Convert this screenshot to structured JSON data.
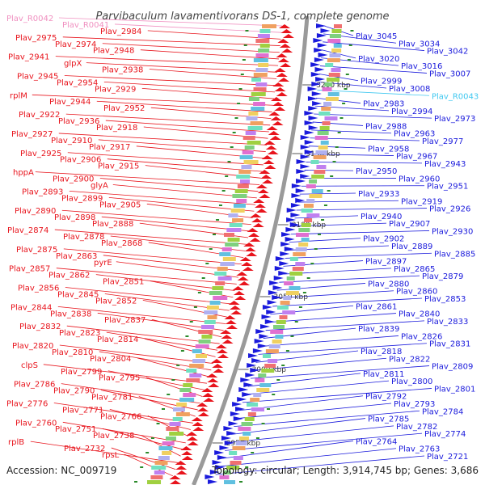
{
  "title": "Parvibaculum lavamentivorans DS-1, complete genome",
  "accession": "Accession: NC_009719",
  "topology": "Topology: circular; Length: 3,914,745 bp; Genes: 3,686",
  "colors": {
    "left_gene": "#e8141c",
    "right_gene": "#1a1adc",
    "rrna_left": "#f090c0",
    "rrna_right": "#40c8f0",
    "backbone": "#9a9a9a",
    "tick": "#2a8a2a"
  },
  "kbp_marks": [
    "3200 kbp",
    "3150 kbp",
    "3100 kbp",
    "3050 kbp",
    "3000 kbp",
    "2950 kbp"
  ],
  "left_labels": [
    {
      "t": "Plav_R0042",
      "c": "pink"
    },
    {
      "t": "Plav_R0041",
      "c": "pink"
    },
    {
      "t": "Plav_2984"
    },
    {
      "t": "Plav_2975"
    },
    {
      "t": "Plav_2974"
    },
    {
      "t": "Plav_2948"
    },
    {
      "t": "Plav_2941"
    },
    {
      "t": "glpX"
    },
    {
      "t": "Plav_2938"
    },
    {
      "t": "Plav_2945"
    },
    {
      "t": "Plav_2954"
    },
    {
      "t": "Plav_2929"
    },
    {
      "t": "rplM"
    },
    {
      "t": "Plav_2944"
    },
    {
      "t": "Plav_2952"
    },
    {
      "t": "Plav_2922"
    },
    {
      "t": "Plav_2936"
    },
    {
      "t": "Plav_2918"
    },
    {
      "t": "Plav_2927"
    },
    {
      "t": "Plav_2910"
    },
    {
      "t": "Plav_2917"
    },
    {
      "t": "Plav_2925"
    },
    {
      "t": "Plav_2906"
    },
    {
      "t": "Plav_2915"
    },
    {
      "t": "hppA"
    },
    {
      "t": "Plav_2900"
    },
    {
      "t": "glyA"
    },
    {
      "t": "Plav_2893"
    },
    {
      "t": "Plav_2899"
    },
    {
      "t": "Plav_2905"
    },
    {
      "t": "Plav_2890"
    },
    {
      "t": "Plav_2898"
    },
    {
      "t": "Plav_2888"
    },
    {
      "t": "Plav_2874"
    },
    {
      "t": "Plav_2878"
    },
    {
      "t": "Plav_2868"
    },
    {
      "t": "Plav_2875"
    },
    {
      "t": "Plav_2863"
    },
    {
      "t": "pyrE"
    },
    {
      "t": "Plav_2857"
    },
    {
      "t": "Plav_2862"
    },
    {
      "t": "Plav_2851"
    },
    {
      "t": "Plav_2856"
    },
    {
      "t": "Plav_2845"
    },
    {
      "t": "Plav_2852"
    },
    {
      "t": "Plav_2844"
    },
    {
      "t": "Plav_2838"
    },
    {
      "t": "Plav_2837"
    },
    {
      "t": "Plav_2832"
    },
    {
      "t": "Plav_2823"
    },
    {
      "t": "Plav_2814"
    },
    {
      "t": "Plav_2820"
    },
    {
      "t": "Plav_2810"
    },
    {
      "t": "Plav_2804"
    },
    {
      "t": "clpS"
    },
    {
      "t": "Plav_2799"
    },
    {
      "t": "Plav_2795"
    },
    {
      "t": "Plav_2786"
    },
    {
      "t": "Plav_2790"
    },
    {
      "t": "Plav_2781"
    },
    {
      "t": "Plav_2776"
    },
    {
      "t": "Plav_2771"
    },
    {
      "t": "Plav_2766"
    },
    {
      "t": "Plav_2760"
    },
    {
      "t": "Plav_2751"
    },
    {
      "t": "Plav_2738"
    },
    {
      "t": "rplB"
    },
    {
      "t": "Plav_2732"
    },
    {
      "t": "rpsL"
    }
  ],
  "right_labels": [
    {
      "t": "Plav_3045"
    },
    {
      "t": "Plav_3034"
    },
    {
      "t": "Plav_3042"
    },
    {
      "t": "Plav_3020"
    },
    {
      "t": "Plav_3016"
    },
    {
      "t": "Plav_3007"
    },
    {
      "t": "Plav_2999"
    },
    {
      "t": "Plav_3008"
    },
    {
      "t": "Plav_R0043",
      "c": "cyan"
    },
    {
      "t": "Plav_2983"
    },
    {
      "t": "Plav_2994"
    },
    {
      "t": "Plav_2973"
    },
    {
      "t": "Plav_2988"
    },
    {
      "t": "Plav_2963"
    },
    {
      "t": "Plav_2977"
    },
    {
      "t": "Plav_2958"
    },
    {
      "t": "Plav_2967"
    },
    {
      "t": "Plav_2943"
    },
    {
      "t": "Plav_2950"
    },
    {
      "t": "Plav_2960"
    },
    {
      "t": "Plav_2951"
    },
    {
      "t": "Plav_2933"
    },
    {
      "t": "Plav_2919"
    },
    {
      "t": "Plav_2926"
    },
    {
      "t": "Plav_2940"
    },
    {
      "t": "Plav_2907"
    },
    {
      "t": "Plav_2930"
    },
    {
      "t": "Plav_2902"
    },
    {
      "t": "Plav_2889"
    },
    {
      "t": "Plav_2885"
    },
    {
      "t": "Plav_2897"
    },
    {
      "t": "Plav_2865"
    },
    {
      "t": "Plav_2879"
    },
    {
      "t": "Plav_2880"
    },
    {
      "t": "Plav_2860"
    },
    {
      "t": "Plav_2853"
    },
    {
      "t": "Plav_2861"
    },
    {
      "t": "Plav_2840"
    },
    {
      "t": "Plav_2833"
    },
    {
      "t": "Plav_2839"
    },
    {
      "t": "Plav_2826"
    },
    {
      "t": "Plav_2831"
    },
    {
      "t": "Plav_2818"
    },
    {
      "t": "Plav_2822"
    },
    {
      "t": "Plav_2809"
    },
    {
      "t": "Plav_2811"
    },
    {
      "t": "Plav_2800"
    },
    {
      "t": "Plav_2801"
    },
    {
      "t": "Plav_2792"
    },
    {
      "t": "Plav_2793"
    },
    {
      "t": "Plav_2784"
    },
    {
      "t": "Plav_2785"
    },
    {
      "t": "Plav_2782"
    },
    {
      "t": "Plav_2774"
    },
    {
      "t": "Plav_2764"
    },
    {
      "t": "Plav_2763"
    },
    {
      "t": "Plav_2721"
    }
  ]
}
